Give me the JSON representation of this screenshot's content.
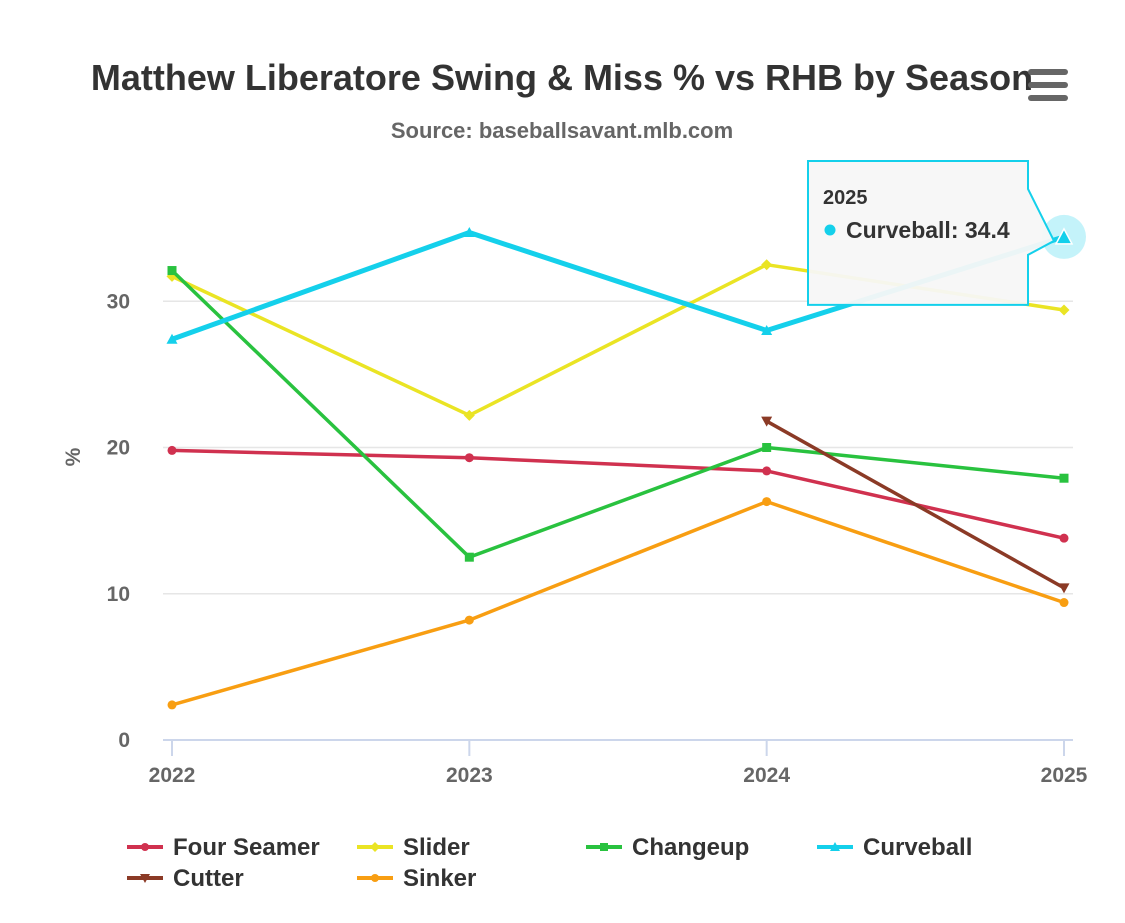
{
  "menu_icon": "hamburger-menu-icon",
  "chart_data": {
    "type": "line",
    "title": "Matthew Liberatore Swing & Miss % vs RHB by Season",
    "subtitle": "Source: baseballsavant.mlb.com",
    "ylabel": "%",
    "xlabel": "",
    "categories": [
      "2022",
      "2023",
      "2024",
      "2025"
    ],
    "ylim": [
      0,
      40
    ],
    "yticks": [
      "0",
      "10",
      "20",
      "30"
    ],
    "grid": "horizontal",
    "legend_position": "bottom",
    "series": [
      {
        "name": "Four Seamer",
        "color": "#d0314f",
        "marker": "circle",
        "values": [
          19.8,
          19.3,
          18.4,
          13.8
        ]
      },
      {
        "name": "Slider",
        "color": "#eae424",
        "marker": "diamond",
        "values": [
          31.7,
          22.2,
          32.5,
          29.4
        ]
      },
      {
        "name": "Changeup",
        "color": "#29c23f",
        "marker": "square",
        "values": [
          32.1,
          12.5,
          20.0,
          17.9
        ]
      },
      {
        "name": "Curveball",
        "color": "#14d0eb",
        "marker": "triangle",
        "values": [
          27.4,
          34.7,
          28.0,
          34.4
        ]
      },
      {
        "name": "Cutter",
        "color": "#8b3a26",
        "marker": "triangle-down",
        "values": [
          null,
          null,
          21.8,
          10.4
        ]
      },
      {
        "name": "Sinker",
        "color": "#f89e12",
        "marker": "circle",
        "values": [
          2.4,
          8.2,
          16.3,
          9.4
        ]
      }
    ],
    "tooltip": {
      "category": "2025",
      "series": "Curveball",
      "label": "Curveball: 34.4"
    }
  }
}
